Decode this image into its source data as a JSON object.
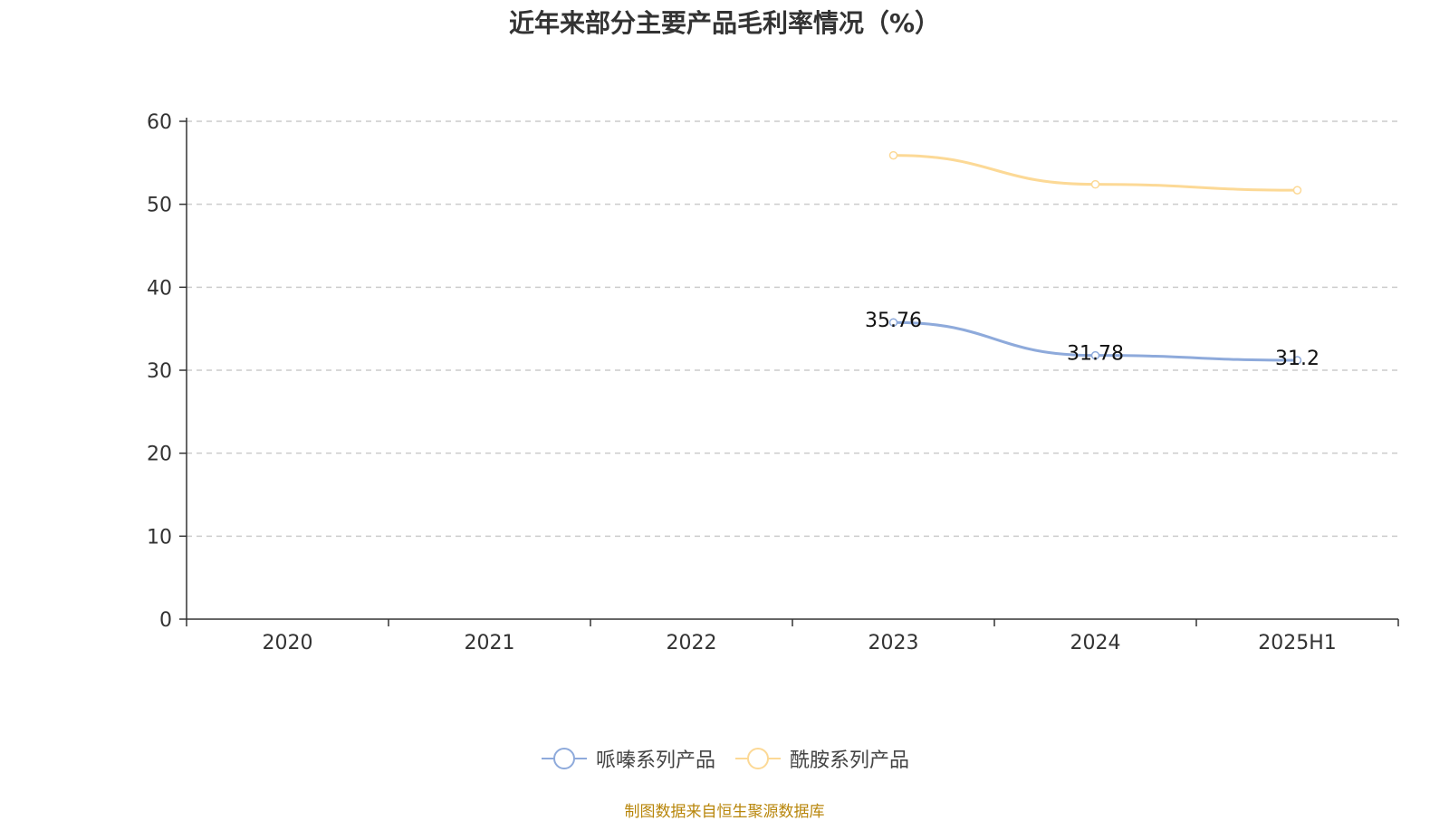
{
  "chart_data": {
    "type": "line",
    "title": "近年来部分主要产品毛利率情况（%）",
    "categories": [
      "2020",
      "2021",
      "2022",
      "2023",
      "2024",
      "2025H1"
    ],
    "y_ticks": [
      "0",
      "10",
      "20",
      "30",
      "40",
      "50",
      "60"
    ],
    "ylim": [
      0,
      60
    ],
    "grid": true,
    "legend_position": "bottom-center",
    "series": [
      {
        "name": "哌嗪系列产品",
        "color": "#8eaadb",
        "values": [
          null,
          null,
          null,
          35.76,
          31.78,
          31.2
        ],
        "labels": [
          "",
          "",
          "",
          "35.76",
          "31.78",
          "31.2"
        ]
      },
      {
        "name": "酰胺系列产品",
        "color": "#fcd996",
        "values": [
          null,
          null,
          null,
          55.9,
          52.4,
          51.7
        ],
        "labels": [
          "",
          "",
          "",
          "",
          "",
          ""
        ]
      }
    ]
  },
  "source": "制图数据来自恒生聚源数据库"
}
